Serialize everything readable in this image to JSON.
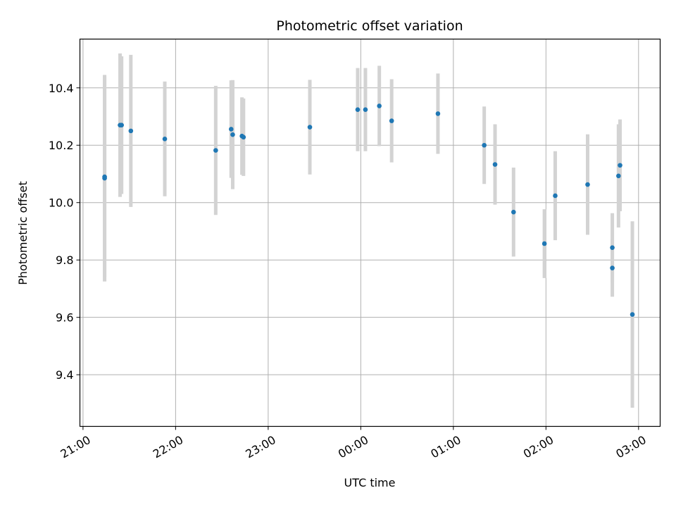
{
  "chart_data": {
    "type": "scatter",
    "title": "Photometric offset variation",
    "xlabel": "UTC time",
    "ylabel": "Photometric offset",
    "x_tick_labels": [
      "21:00",
      "22:00",
      "23:00",
      "00:00",
      "01:00",
      "02:00",
      "03:00"
    ],
    "y_tick_labels": [
      "9.4",
      "9.6",
      "9.8",
      "10.0",
      "10.2",
      "10.4"
    ],
    "y_ticks": [
      9.4,
      9.6,
      9.8,
      10.0,
      10.2,
      10.4
    ],
    "ylim": [
      9.22,
      10.57
    ],
    "xlim": [
      "20:58",
      "03:14"
    ],
    "grid": true,
    "legend": "none",
    "colors": {
      "point": "#1f77b4",
      "errorbar": "#d3d3d3",
      "grid": "#b0b0b0"
    },
    "points": [
      {
        "x": "21:14",
        "y": 10.085,
        "err": 0.36
      },
      {
        "x": "21:14",
        "y": 10.09,
        "err": 0.35
      },
      {
        "x": "21:24",
        "y": 10.27,
        "err": 0.25
      },
      {
        "x": "21:25",
        "y": 10.27,
        "err": 0.24
      },
      {
        "x": "21:31",
        "y": 10.25,
        "err": 0.265
      },
      {
        "x": "21:53",
        "y": 10.222,
        "err": 0.2
      },
      {
        "x": "22:26",
        "y": 10.182,
        "err": 0.225
      },
      {
        "x": "22:36",
        "y": 10.256,
        "err": 0.17
      },
      {
        "x": "22:37",
        "y": 10.237,
        "err": 0.19
      },
      {
        "x": "22:43",
        "y": 10.232,
        "err": 0.135
      },
      {
        "x": "22:44",
        "y": 10.228,
        "err": 0.135
      },
      {
        "x": "23:27",
        "y": 10.263,
        "err": 0.165
      },
      {
        "x": "23:58",
        "y": 10.324,
        "err": 0.145
      },
      {
        "x": "00:03",
        "y": 10.324,
        "err": 0.145
      },
      {
        "x": "00:12",
        "y": 10.337,
        "err": 0.14
      },
      {
        "x": "00:20",
        "y": 10.285,
        "err": 0.145
      },
      {
        "x": "00:50",
        "y": 10.31,
        "err": 0.14
      },
      {
        "x": "01:20",
        "y": 10.2,
        "err": 0.135
      },
      {
        "x": "01:27",
        "y": 10.133,
        "err": 0.14
      },
      {
        "x": "01:39",
        "y": 9.967,
        "err": 0.155
      },
      {
        "x": "01:59",
        "y": 9.857,
        "err": 0.12
      },
      {
        "x": "02:06",
        "y": 10.024,
        "err": 0.155
      },
      {
        "x": "02:27",
        "y": 10.063,
        "err": 0.175
      },
      {
        "x": "02:43",
        "y": 9.843,
        "err": 0.12
      },
      {
        "x": "02:43",
        "y": 9.772,
        "err": 0.1
      },
      {
        "x": "02:47",
        "y": 10.093,
        "err": 0.18
      },
      {
        "x": "02:48",
        "y": 10.13,
        "err": 0.16
      },
      {
        "x": "02:56",
        "y": 9.61,
        "err": 0.325
      }
    ]
  }
}
